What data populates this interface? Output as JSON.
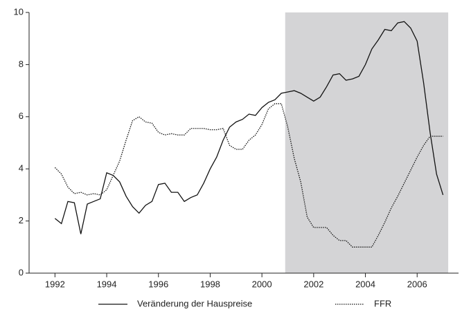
{
  "chart_data": {
    "type": "line",
    "x": [
      1992,
      1992.25,
      1992.5,
      1992.75,
      1993,
      1993.25,
      1993.5,
      1993.75,
      1994,
      1994.25,
      1994.5,
      1994.75,
      1995,
      1995.25,
      1995.5,
      1995.75,
      1996,
      1996.25,
      1996.5,
      1996.75,
      1997,
      1997.25,
      1997.5,
      1997.75,
      1998,
      1998.25,
      1998.5,
      1998.75,
      1999,
      1999.25,
      1999.5,
      1999.75,
      2000,
      2000.25,
      2000.5,
      2000.75,
      2001,
      2001.25,
      2001.5,
      2001.75,
      2002,
      2002.25,
      2002.5,
      2002.75,
      2003,
      2003.25,
      2003.5,
      2003.75,
      2004,
      2004.25,
      2004.5,
      2004.75,
      2005,
      2005.25,
      2005.5,
      2005.75,
      2006,
      2006.25,
      2006.5,
      2006.75,
      2007
    ],
    "series": [
      {
        "name": "Veränderung der Hauspreise",
        "color": "#111111",
        "dash": "solid",
        "values": [
          2.1,
          1.9,
          2.75,
          2.7,
          1.5,
          2.65,
          2.75,
          2.85,
          3.85,
          3.75,
          3.5,
          2.95,
          2.55,
          2.3,
          2.6,
          2.75,
          3.4,
          3.45,
          3.1,
          3.1,
          2.75,
          2.9,
          3.0,
          3.45,
          4.0,
          4.45,
          5.1,
          5.6,
          5.8,
          5.9,
          6.1,
          6.05,
          6.35,
          6.55,
          6.65,
          6.9,
          6.95,
          7.0,
          6.9,
          6.75,
          6.6,
          6.75,
          7.15,
          7.6,
          7.65,
          7.4,
          7.45,
          7.55,
          8.0,
          8.6,
          8.95,
          9.35,
          9.3,
          9.6,
          9.65,
          9.4,
          8.9,
          7.3,
          5.4,
          3.8,
          3.0
        ]
      },
      {
        "name": "FFR",
        "color": "#111111",
        "dash": "dotted",
        "values": [
          4.05,
          3.8,
          3.3,
          3.05,
          3.1,
          3.0,
          3.05,
          3.0,
          3.2,
          3.75,
          4.3,
          5.1,
          5.85,
          6.0,
          5.8,
          5.75,
          5.4,
          5.3,
          5.35,
          5.3,
          5.3,
          5.55,
          5.55,
          5.55,
          5.5,
          5.5,
          5.55,
          4.9,
          4.75,
          4.75,
          5.1,
          5.3,
          5.7,
          6.3,
          6.5,
          6.5,
          5.6,
          4.4,
          3.5,
          2.15,
          1.75,
          1.75,
          1.75,
          1.45,
          1.25,
          1.25,
          1.0,
          1.0,
          1.0,
          1.0,
          1.45,
          1.95,
          2.5,
          2.95,
          3.45,
          3.95,
          4.45,
          4.9,
          5.25,
          5.25,
          5.25
        ]
      }
    ],
    "shade": [
      2000.9,
      2007.2
    ],
    "shade_color": "#d4d4d6",
    "xlim": [
      1991,
      2007.6
    ],
    "xticks": [
      1992,
      1994,
      1996,
      1998,
      2000,
      2002,
      2004,
      2006
    ],
    "ylim": [
      0,
      10
    ],
    "yticks": [
      0,
      2,
      4,
      6,
      8,
      10
    ],
    "grid": false,
    "legend": "bottom"
  }
}
